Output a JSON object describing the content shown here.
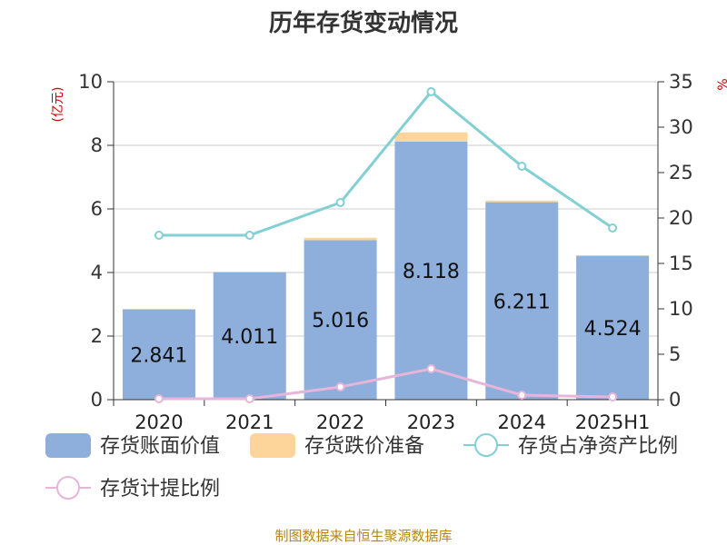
{
  "chart_data": {
    "type": "bar",
    "title": "历年存货变动情况",
    "categories": [
      "2020",
      "2021",
      "2022",
      "2023",
      "2024",
      "2025H1"
    ],
    "y_left": {
      "unit_label": "(亿元)",
      "range": [
        0,
        10
      ],
      "ticks": [
        "0",
        "2",
        "4",
        "6",
        "8",
        "10"
      ]
    },
    "y_right": {
      "unit_label": "%",
      "range": [
        0,
        35
      ],
      "ticks": [
        "0",
        "5",
        "10",
        "15",
        "20",
        "25",
        "30",
        "35"
      ]
    },
    "series": [
      {
        "name": "存货账面价值",
        "kind": "bar",
        "stack": "inventory",
        "axis": "left",
        "color": "#8eaedb",
        "values": [
          2.841,
          4.011,
          5.016,
          8.118,
          6.211,
          4.524
        ],
        "labels": [
          "2.841",
          "4.011",
          "5.016",
          "8.118",
          "6.211",
          "4.524"
        ]
      },
      {
        "name": "存货跌价准备",
        "kind": "bar",
        "stack": "inventory",
        "axis": "left",
        "color": "#fdd49a",
        "values": [
          0.01,
          0.01,
          0.08,
          0.29,
          0.05,
          0.02
        ]
      },
      {
        "name": "存货占净资产比例",
        "kind": "line",
        "axis": "right",
        "color": "#82d0d4",
        "values": [
          18.1,
          18.1,
          21.7,
          33.9,
          25.7,
          18.9
        ]
      },
      {
        "name": "存货计提比例",
        "kind": "line",
        "axis": "right",
        "color": "#e6b5d9",
        "values": [
          0.1,
          0.1,
          1.4,
          3.4,
          0.5,
          0.3
        ]
      }
    ],
    "grid": true,
    "legend": "bottom"
  },
  "source": "制图数据来自恒生聚源数据库"
}
